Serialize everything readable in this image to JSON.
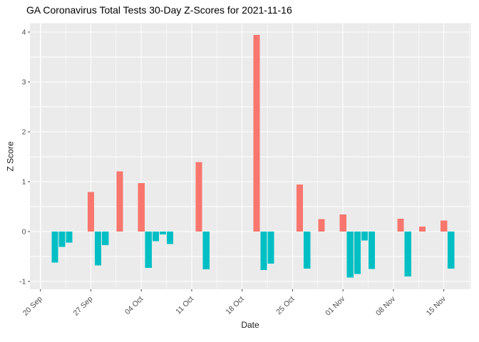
{
  "header": {
    "title": "GA Coronavirus Total Tests 30-Day Z-Scores for 2021-11-16"
  },
  "chart_data": {
    "type": "bar",
    "title": "GA Coronavirus Total Tests 30-Day Z-Scores for 2021-11-16",
    "xlabel": "Date",
    "ylabel": "Z Score",
    "ylim": [
      -1.16,
      4.18
    ],
    "grid": "on",
    "legend": "none",
    "x_axis_start_date": "2021-09-20",
    "x_ticks": [
      {
        "day": 0,
        "label": "20 Sep"
      },
      {
        "day": 7,
        "label": "27 Sep"
      },
      {
        "day": 14,
        "label": "04 Oct"
      },
      {
        "day": 21,
        "label": "11 Oct"
      },
      {
        "day": 28,
        "label": "18 Oct"
      },
      {
        "day": 35,
        "label": "25 Oct"
      },
      {
        "day": 42,
        "label": "01 Nov"
      },
      {
        "day": 49,
        "label": "08 Nov"
      },
      {
        "day": 56,
        "label": "15 Nov"
      }
    ],
    "y_ticks": [
      {
        "v": -1,
        "label": "-1"
      },
      {
        "v": 0,
        "label": "0"
      },
      {
        "v": 1,
        "label": "1"
      },
      {
        "v": 2,
        "label": "2"
      },
      {
        "v": 3,
        "label": "3"
      },
      {
        "v": 4,
        "label": "4"
      }
    ],
    "bars": [
      {
        "date": "2021-09-22",
        "day": 2,
        "z": -0.62
      },
      {
        "date": "2021-09-23",
        "day": 3,
        "z": -0.31
      },
      {
        "date": "2021-09-24",
        "day": 4,
        "z": -0.22
      },
      {
        "date": "2021-09-27",
        "day": 7,
        "z": 0.79
      },
      {
        "date": "2021-09-28",
        "day": 8,
        "z": -0.68
      },
      {
        "date": "2021-09-29",
        "day": 9,
        "z": -0.27
      },
      {
        "date": "2021-10-01",
        "day": 11,
        "z": 1.21
      },
      {
        "date": "2021-10-04",
        "day": 14,
        "z": 0.97
      },
      {
        "date": "2021-10-05",
        "day": 15,
        "z": -0.73
      },
      {
        "date": "2021-10-06",
        "day": 16,
        "z": -0.19
      },
      {
        "date": "2021-10-07",
        "day": 17,
        "z": -0.06
      },
      {
        "date": "2021-10-08",
        "day": 18,
        "z": -0.25
      },
      {
        "date": "2021-10-12",
        "day": 22,
        "z": 1.39
      },
      {
        "date": "2021-10-13",
        "day": 23,
        "z": -0.76
      },
      {
        "date": "2021-10-20",
        "day": 30,
        "z": 3.94
      },
      {
        "date": "2021-10-21",
        "day": 31,
        "z": -0.77
      },
      {
        "date": "2021-10-22",
        "day": 32,
        "z": -0.64
      },
      {
        "date": "2021-10-26",
        "day": 36,
        "z": 0.94
      },
      {
        "date": "2021-10-27",
        "day": 37,
        "z": -0.74
      },
      {
        "date": "2021-10-29",
        "day": 39,
        "z": 0.25
      },
      {
        "date": "2021-11-01",
        "day": 42,
        "z": 0.34
      },
      {
        "date": "2021-11-02",
        "day": 43,
        "z": -0.92
      },
      {
        "date": "2021-11-03",
        "day": 44,
        "z": -0.85
      },
      {
        "date": "2021-11-04",
        "day": 45,
        "z": -0.18
      },
      {
        "date": "2021-11-05",
        "day": 46,
        "z": -0.75
      },
      {
        "date": "2021-11-09",
        "day": 50,
        "z": 0.26
      },
      {
        "date": "2021-11-10",
        "day": 51,
        "z": -0.9
      },
      {
        "date": "2021-11-12",
        "day": 53,
        "z": 0.1
      },
      {
        "date": "2021-11-15",
        "day": 56,
        "z": 0.22
      },
      {
        "date": "2021-11-16",
        "day": 57,
        "z": -0.74
      }
    ],
    "colors": {
      "positive": "#F8766D",
      "negative": "#00BFC4",
      "panel_bg": "#EBEBEB",
      "grid": "#FFFFFF",
      "axis_text": "#4D4D4D",
      "tick_mark": "#333333",
      "title_text": "#000000"
    }
  }
}
